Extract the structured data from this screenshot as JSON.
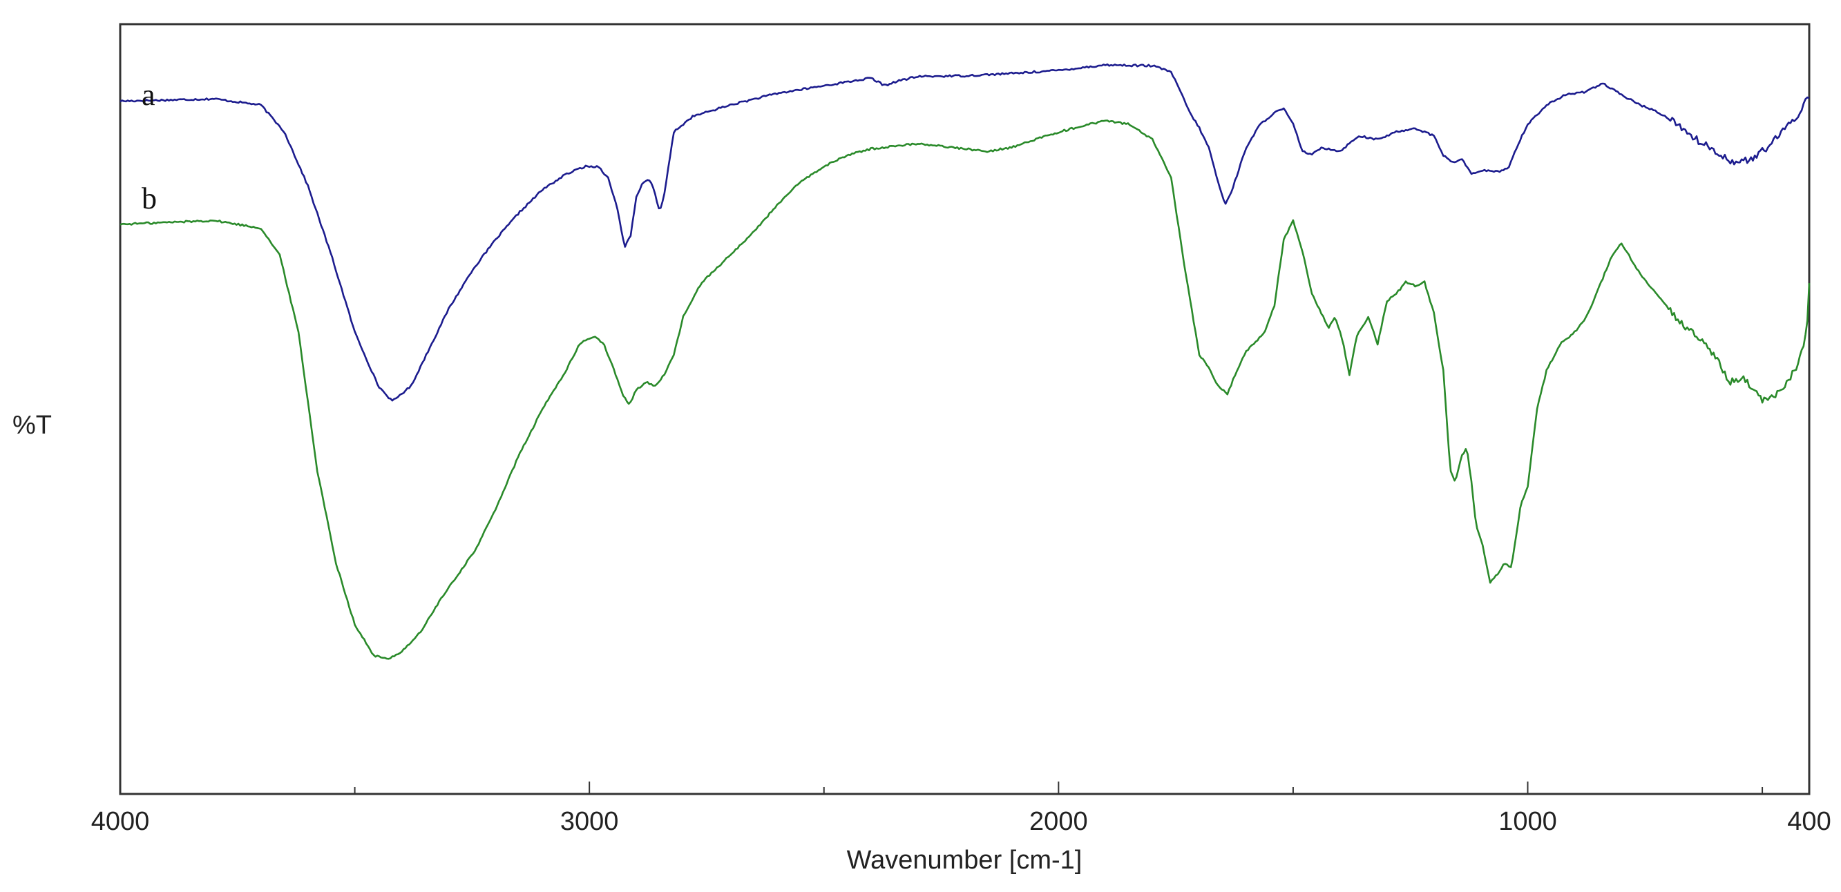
{
  "chart_data": {
    "type": "line",
    "title": "",
    "xlabel": "Wavenumber [cm-1]",
    "ylabel": "%T",
    "xlim": [
      4000,
      400
    ],
    "x_reversed": true,
    "ylim": [
      0,
      100
    ],
    "y_ticks_shown": false,
    "grid": false,
    "legend": "inline labels at top-left",
    "x_ticks": [
      4000,
      3000,
      2000,
      1000,
      400
    ],
    "x_minor_ticks": [
      3500,
      2500,
      1500,
      500
    ],
    "series": [
      {
        "name": "a",
        "color": "#1c1c8e",
        "points": [
          [
            4000,
            90
          ],
          [
            3800,
            90.3
          ],
          [
            3700,
            89.5
          ],
          [
            3650,
            86
          ],
          [
            3600,
            79
          ],
          [
            3550,
            70
          ],
          [
            3500,
            60
          ],
          [
            3450,
            53
          ],
          [
            3420,
            51
          ],
          [
            3380,
            53
          ],
          [
            3340,
            58
          ],
          [
            3300,
            63
          ],
          [
            3250,
            68
          ],
          [
            3200,
            72
          ],
          [
            3150,
            75.5
          ],
          [
            3100,
            78.5
          ],
          [
            3050,
            80.5
          ],
          [
            3010,
            81.5
          ],
          [
            2980,
            81.5
          ],
          [
            2960,
            80
          ],
          [
            2940,
            76
          ],
          [
            2925,
            71
          ],
          [
            2912,
            72.5
          ],
          [
            2900,
            77.5
          ],
          [
            2885,
            79.5
          ],
          [
            2870,
            79.8
          ],
          [
            2860,
            78
          ],
          [
            2850,
            75.5
          ],
          [
            2840,
            78
          ],
          [
            2820,
            86
          ],
          [
            2780,
            88
          ],
          [
            2700,
            89.5
          ],
          [
            2600,
            91
          ],
          [
            2500,
            92
          ],
          [
            2400,
            93
          ],
          [
            2370,
            92
          ],
          [
            2350,
            92.5
          ],
          [
            2300,
            93.2
          ],
          [
            2200,
            93.3
          ],
          [
            2100,
            93.6
          ],
          [
            2000,
            94
          ],
          [
            1900,
            94.7
          ],
          [
            1800,
            94.6
          ],
          [
            1760,
            93.8
          ],
          [
            1740,
            91.2
          ],
          [
            1720,
            88.5
          ],
          [
            1700,
            86.5
          ],
          [
            1680,
            84
          ],
          [
            1660,
            79.5
          ],
          [
            1645,
            76.5
          ],
          [
            1630,
            78.5
          ],
          [
            1600,
            84
          ],
          [
            1570,
            87
          ],
          [
            1540,
            88.5
          ],
          [
            1520,
            89
          ],
          [
            1500,
            87
          ],
          [
            1480,
            83.5
          ],
          [
            1460,
            83
          ],
          [
            1440,
            84
          ],
          [
            1400,
            83.5
          ],
          [
            1360,
            85.5
          ],
          [
            1320,
            85
          ],
          [
            1280,
            86
          ],
          [
            1240,
            86.5
          ],
          [
            1200,
            85.5
          ],
          [
            1180,
            83
          ],
          [
            1160,
            82
          ],
          [
            1140,
            82.5
          ],
          [
            1120,
            80.5
          ],
          [
            1100,
            81
          ],
          [
            1060,
            80.8
          ],
          [
            1040,
            81.5
          ],
          [
            1020,
            84.5
          ],
          [
            1000,
            87
          ],
          [
            960,
            89.5
          ],
          [
            920,
            90.8
          ],
          [
            880,
            91.2
          ],
          [
            840,
            92.3
          ],
          [
            800,
            90.8
          ],
          [
            760,
            89.5
          ],
          [
            720,
            88.5
          ],
          [
            680,
            87
          ],
          [
            640,
            85
          ],
          [
            600,
            83.5
          ],
          [
            560,
            82
          ],
          [
            520,
            82.5
          ],
          [
            480,
            84.5
          ],
          [
            450,
            86.5
          ],
          [
            420,
            88.5
          ],
          [
            410,
            90
          ],
          [
            400,
            90.5
          ]
        ]
      },
      {
        "name": "b",
        "color": "#2a8a2a",
        "points": [
          [
            4000,
            74
          ],
          [
            3800,
            74.5
          ],
          [
            3700,
            73.5
          ],
          [
            3660,
            70
          ],
          [
            3620,
            60
          ],
          [
            3580,
            42
          ],
          [
            3540,
            30
          ],
          [
            3500,
            22
          ],
          [
            3460,
            18
          ],
          [
            3430,
            17.5
          ],
          [
            3400,
            18.5
          ],
          [
            3360,
            21
          ],
          [
            3320,
            25
          ],
          [
            3280,
            28.5
          ],
          [
            3240,
            32
          ],
          [
            3200,
            37
          ],
          [
            3150,
            44
          ],
          [
            3100,
            50
          ],
          [
            3050,
            55
          ],
          [
            3020,
            58.5
          ],
          [
            2990,
            59.5
          ],
          [
            2970,
            58.5
          ],
          [
            2950,
            55.5
          ],
          [
            2930,
            52
          ],
          [
            2915,
            50.5
          ],
          [
            2900,
            52.5
          ],
          [
            2880,
            53.5
          ],
          [
            2860,
            53
          ],
          [
            2840,
            54.5
          ],
          [
            2820,
            57
          ],
          [
            2800,
            62
          ],
          [
            2760,
            66.5
          ],
          [
            2700,
            70
          ],
          [
            2650,
            73
          ],
          [
            2600,
            76.5
          ],
          [
            2550,
            79.5
          ],
          [
            2500,
            81.5
          ],
          [
            2450,
            83
          ],
          [
            2400,
            83.8
          ],
          [
            2300,
            84.5
          ],
          [
            2200,
            83.8
          ],
          [
            2150,
            83.5
          ],
          [
            2100,
            84
          ],
          [
            2000,
            86
          ],
          [
            1900,
            87.5
          ],
          [
            1850,
            87
          ],
          [
            1800,
            85
          ],
          [
            1760,
            80
          ],
          [
            1730,
            68
          ],
          [
            1700,
            57
          ],
          [
            1680,
            55.5
          ],
          [
            1660,
            53
          ],
          [
            1640,
            52
          ],
          [
            1620,
            55
          ],
          [
            1600,
            57.5
          ],
          [
            1560,
            60
          ],
          [
            1540,
            63.5
          ],
          [
            1520,
            72
          ],
          [
            1500,
            74.5
          ],
          [
            1480,
            70.5
          ],
          [
            1460,
            65
          ],
          [
            1440,
            62.5
          ],
          [
            1425,
            60.5
          ],
          [
            1410,
            62
          ],
          [
            1395,
            59
          ],
          [
            1380,
            54.5
          ],
          [
            1365,
            59.5
          ],
          [
            1340,
            62
          ],
          [
            1320,
            58.5
          ],
          [
            1300,
            64
          ],
          [
            1280,
            65
          ],
          [
            1260,
            66.5
          ],
          [
            1240,
            66
          ],
          [
            1220,
            66.5
          ],
          [
            1200,
            62.5
          ],
          [
            1180,
            55
          ],
          [
            1165,
            42
          ],
          [
            1155,
            40.5
          ],
          [
            1140,
            44
          ],
          [
            1130,
            45
          ],
          [
            1120,
            40.5
          ],
          [
            1110,
            35
          ],
          [
            1095,
            32
          ],
          [
            1080,
            27.5
          ],
          [
            1065,
            28.5
          ],
          [
            1050,
            30
          ],
          [
            1035,
            29.5
          ],
          [
            1015,
            37.5
          ],
          [
            1000,
            40
          ],
          [
            980,
            50
          ],
          [
            960,
            55
          ],
          [
            930,
            58.5
          ],
          [
            900,
            60
          ],
          [
            880,
            61.5
          ],
          [
            860,
            64
          ],
          [
            840,
            67
          ],
          [
            820,
            70
          ],
          [
            800,
            71.5
          ],
          [
            780,
            69.5
          ],
          [
            760,
            67.5
          ],
          [
            720,
            64.5
          ],
          [
            680,
            61.5
          ],
          [
            640,
            59.5
          ],
          [
            600,
            57
          ],
          [
            570,
            53.5
          ],
          [
            540,
            54
          ],
          [
            500,
            51
          ],
          [
            480,
            51.5
          ],
          [
            460,
            52.5
          ],
          [
            440,
            54
          ],
          [
            420,
            56.5
          ],
          [
            405,
            60
          ],
          [
            400,
            66
          ]
        ]
      }
    ]
  }
}
